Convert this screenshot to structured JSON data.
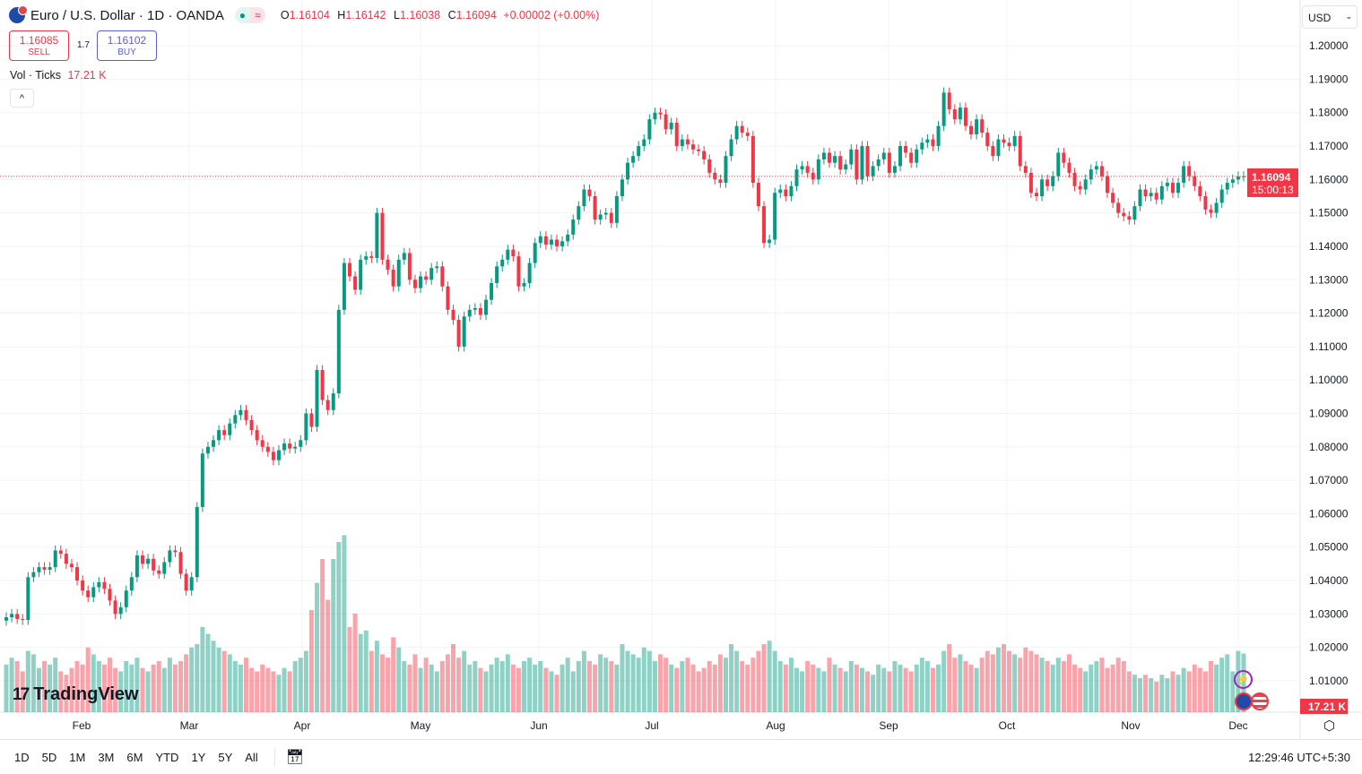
{
  "header": {
    "title": "Euro / U.S. Dollar · 1D · OANDA",
    "open_label": "O",
    "open": "1.16104",
    "high_label": "H",
    "high": "1.16142",
    "low_label": "L",
    "low": "1.16038",
    "close_label": "C",
    "close": "1.16094",
    "change": "+0.00002 (+0.00%)",
    "status_icon": "market-open-dot",
    "delay_icon": "approx-icon"
  },
  "trade": {
    "sell_price": "1.16085",
    "sell_label": "SELL",
    "spread": "1.7",
    "buy_price": "1.16102",
    "buy_label": "BUY"
  },
  "volume_legend": {
    "label": "Vol · Ticks",
    "value": "17.21 K"
  },
  "currency": "USD",
  "price_label": {
    "price": "1.16094",
    "countdown": "15:00:13"
  },
  "volume_label": "17.21 K",
  "logo": "TradingView",
  "timeframes": [
    "1D",
    "5D",
    "1M",
    "3M",
    "6M",
    "YTD",
    "1Y",
    "5Y",
    "All"
  ],
  "clock": "12:29:46 UTC+5:30",
  "colors": {
    "up": "#089981",
    "down": "#F23645"
  },
  "chart_data": {
    "type": "candlestick",
    "ylim": [
      1.0006,
      1.2137
    ],
    "y_ticks": [
      "1.20000",
      "1.19000",
      "1.18000",
      "1.17000",
      "1.16000",
      "1.15000",
      "1.14000",
      "1.13000",
      "1.12000",
      "1.11000",
      "1.10000",
      "1.09000",
      "1.08000",
      "1.07000",
      "1.06000",
      "1.05000",
      "1.04000",
      "1.03000",
      "1.02000",
      "1.01000"
    ],
    "x_ticks": [
      "Feb",
      "Mar",
      "Apr",
      "May",
      "Jun",
      "Jul",
      "Aug",
      "Sep",
      "Oct",
      "Nov",
      "Dec"
    ],
    "grid": true,
    "close": [
      1.029,
      1.03,
      1.0285,
      1.0282,
      1.041,
      1.0425,
      1.044,
      1.0432,
      1.044,
      1.049,
      1.048,
      1.045,
      1.044,
      1.04,
      1.037,
      1.035,
      1.038,
      1.0395,
      1.0375,
      1.034,
      1.03,
      1.032,
      1.037,
      1.041,
      1.0475,
      1.045,
      1.0465,
      1.043,
      1.042,
      1.0455,
      1.049,
      1.0485,
      1.042,
      1.037,
      1.041,
      1.062,
      1.078,
      1.08,
      1.082,
      1.085,
      1.0835,
      1.087,
      1.0895,
      1.091,
      1.088,
      1.085,
      1.082,
      1.08,
      1.0785,
      1.076,
      1.079,
      1.081,
      1.0795,
      1.08,
      1.082,
      1.09,
      1.086,
      1.103,
      1.094,
      1.091,
      1.096,
      1.121,
      1.135,
      1.131,
      1.127,
      1.136,
      1.137,
      1.1365,
      1.15,
      1.136,
      1.133,
      1.128,
      1.136,
      1.138,
      1.13,
      1.1275,
      1.131,
      1.13,
      1.1335,
      1.134,
      1.128,
      1.121,
      1.118,
      1.11,
      1.119,
      1.121,
      1.1215,
      1.1195,
      1.124,
      1.129,
      1.134,
      1.136,
      1.139,
      1.137,
      1.128,
      1.129,
      1.135,
      1.141,
      1.143,
      1.1405,
      1.142,
      1.14,
      1.1415,
      1.1435,
      1.148,
      1.152,
      1.157,
      1.155,
      1.148,
      1.1495,
      1.15,
      1.147,
      1.155,
      1.16,
      1.165,
      1.167,
      1.17,
      1.172,
      1.178,
      1.18,
      1.1795,
      1.175,
      1.177,
      1.17,
      1.172,
      1.1705,
      1.169,
      1.1685,
      1.166,
      1.162,
      1.16,
      1.159,
      1.167,
      1.172,
      1.176,
      1.174,
      1.173,
      1.159,
      1.152,
      1.141,
      1.142,
      1.156,
      1.157,
      1.155,
      1.158,
      1.163,
      1.164,
      1.162,
      1.16,
      1.166,
      1.168,
      1.165,
      1.167,
      1.163,
      1.1645,
      1.169,
      1.16,
      1.17,
      1.161,
      1.164,
      1.166,
      1.168,
      1.162,
      1.164,
      1.17,
      1.168,
      1.165,
      1.169,
      1.171,
      1.172,
      1.17,
      1.176,
      1.186,
      1.181,
      1.178,
      1.1815,
      1.176,
      1.1735,
      1.178,
      1.174,
      1.17,
      1.167,
      1.172,
      1.171,
      1.17,
      1.173,
      1.164,
      1.162,
      1.156,
      1.155,
      1.16,
      1.158,
      1.161,
      1.168,
      1.165,
      1.162,
      1.158,
      1.157,
      1.16,
      1.163,
      1.164,
      1.161,
      1.156,
      1.153,
      1.15,
      1.149,
      1.148,
      1.152,
      1.157,
      1.155,
      1.156,
      1.154,
      1.158,
      1.159,
      1.156,
      1.159,
      1.164,
      1.161,
      1.158,
      1.155,
      1.151,
      1.15,
      1.153,
      1.157,
      1.159,
      1.16,
      1.16092,
      1.16094
    ],
    "volume_k": [
      14,
      16,
      15,
      12,
      18,
      17,
      13,
      15,
      14,
      16,
      12,
      11,
      13,
      15,
      14,
      19,
      17,
      15,
      14,
      16,
      13,
      12,
      15,
      14,
      16,
      13,
      12,
      14,
      15,
      13,
      16,
      14,
      15,
      17,
      19,
      20,
      25,
      23,
      21,
      19,
      18,
      17,
      15,
      14,
      16,
      13,
      12,
      14,
      13,
      12,
      11,
      13,
      12,
      15,
      16,
      18,
      30,
      38,
      45,
      33,
      45,
      50,
      52,
      25,
      29,
      23,
      24,
      18,
      21,
      17,
      16,
      22,
      19,
      15,
      14,
      17,
      13,
      16,
      14,
      12,
      15,
      17,
      20,
      16,
      18,
      14,
      15,
      13,
      12,
      14,
      16,
      15,
      17,
      14,
      13,
      15,
      16,
      14,
      15,
      13,
      12,
      11,
      14,
      16,
      12,
      15,
      18,
      15,
      14,
      17,
      16,
      15,
      14,
      20,
      18,
      17,
      16,
      19,
      18,
      15,
      17,
      16,
      14,
      13,
      15,
      16,
      14,
      12,
      13,
      15,
      14,
      17,
      16,
      20,
      18,
      15,
      14,
      16,
      18,
      20,
      21,
      18,
      15,
      14,
      16,
      13,
      12,
      15,
      14,
      13,
      12,
      16,
      14,
      13,
      12,
      15,
      14,
      13,
      12,
      11,
      14,
      13,
      12,
      15,
      14,
      13,
      12,
      14,
      16,
      15,
      13,
      14,
      18,
      20,
      16,
      17,
      15,
      14,
      13,
      16,
      18,
      17,
      19,
      20,
      18,
      17,
      16,
      19,
      18,
      17,
      16,
      15,
      14,
      16,
      15,
      17,
      14,
      13,
      12,
      14,
      15,
      16,
      13,
      14,
      16,
      15,
      12,
      11,
      10,
      11,
      10,
      9,
      11,
      10,
      12,
      11,
      13,
      12,
      14,
      13,
      12,
      15,
      14,
      16,
      17,
      12,
      18,
      17.21
    ]
  }
}
